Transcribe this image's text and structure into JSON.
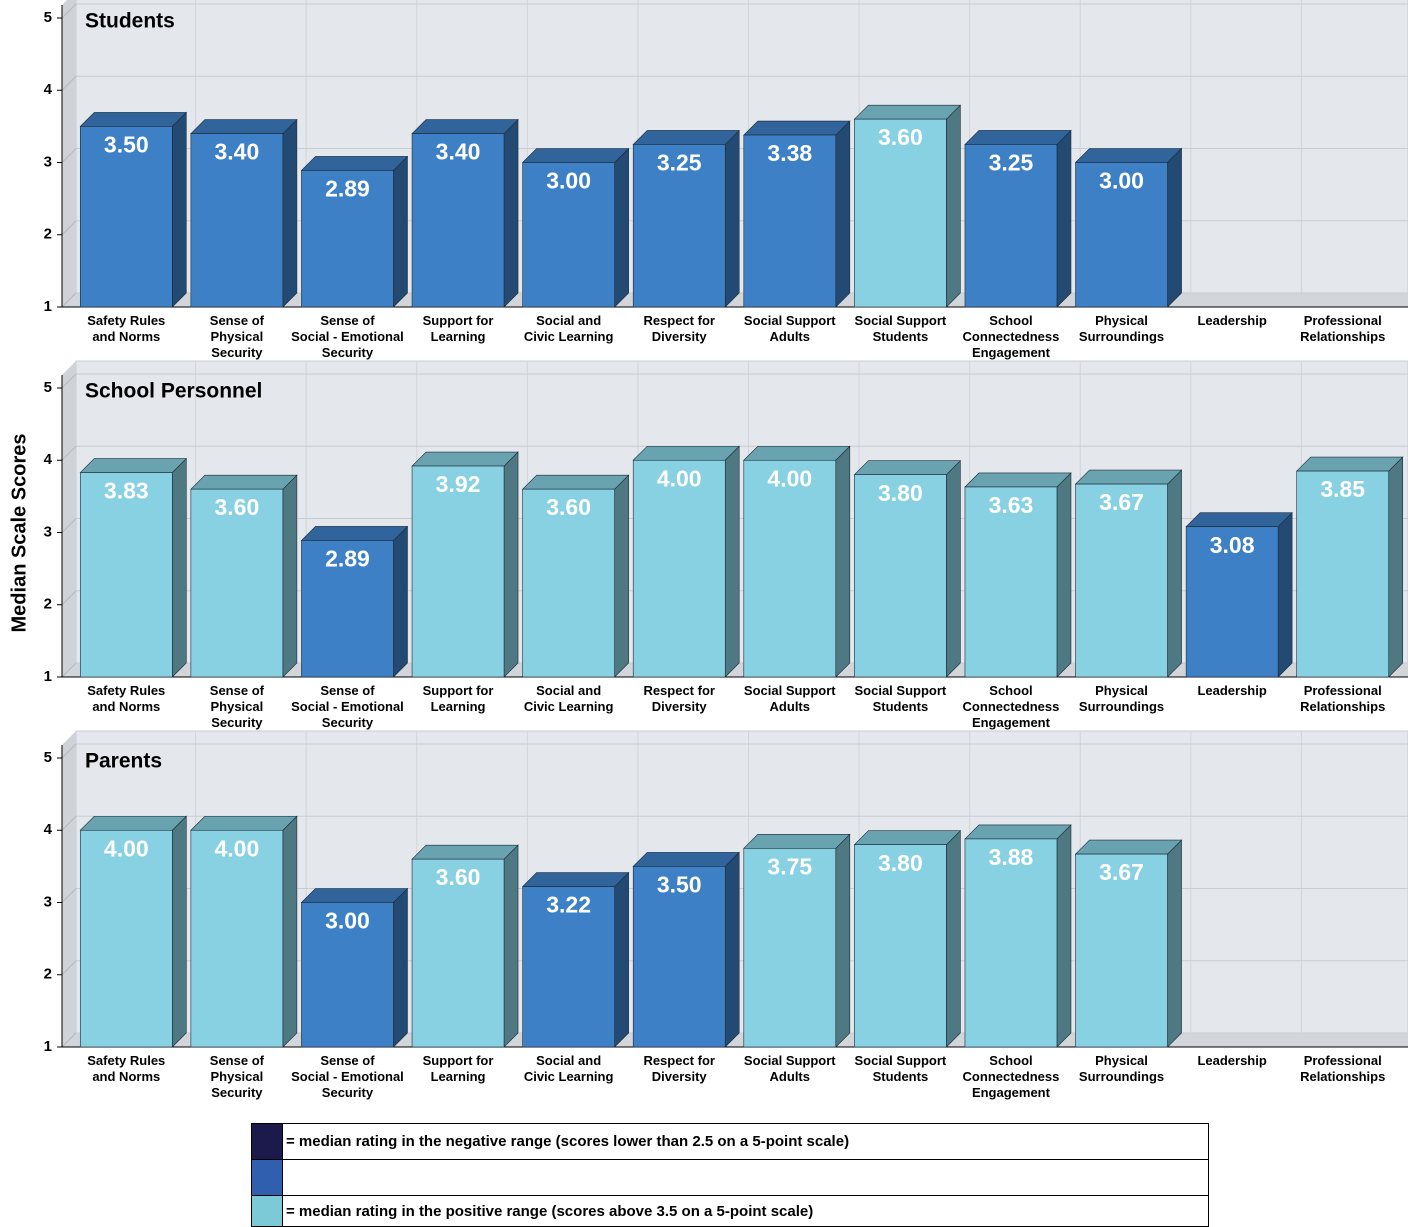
{
  "y_label": "Median Scale Scores",
  "chart_data": [
    {
      "type": "bar",
      "title": "Students",
      "categories": [
        "Safety Rules\nand Norms",
        "Sense of\nPhysical\nSecurity",
        "Sense of\nSocial - Emotional\nSecurity",
        "Support for\nLearning",
        "Social and\nCivic Learning",
        "Respect for\nDiversity",
        "Social Support\nAdults",
        "Social Support\nStudents",
        "School\nConnectedness\nEngagement",
        "Physical\nSurroundings",
        "Leadership",
        "Professional\nRelationships"
      ],
      "values": [
        3.5,
        3.4,
        2.89,
        3.4,
        3.0,
        3.25,
        3.38,
        3.6,
        3.25,
        3.0,
        null,
        null
      ],
      "value_labels": [
        "3.50",
        "3.40",
        "2.89",
        "3.40",
        "3.00",
        "3.25",
        "3.38",
        "3.60",
        "3.25",
        "3.00",
        null,
        null
      ],
      "colors": [
        "#3d80c6",
        "#3d80c6",
        "#3d80c6",
        "#3d80c6",
        "#3d80c6",
        "#3d80c6",
        "#3d80c6",
        "#87d1e2",
        "#3d80c6",
        "#3d80c6",
        null,
        null
      ],
      "ylim": [
        1,
        5
      ],
      "yticks": [
        1,
        2,
        3,
        4,
        5
      ],
      "grid": true
    },
    {
      "type": "bar",
      "title": "School Personnel",
      "categories": [
        "Safety Rules\nand Norms",
        "Sense of\nPhysical\nSecurity",
        "Sense of\nSocial - Emotional\nSecurity",
        "Support for\nLearning",
        "Social and\nCivic Learning",
        "Respect for\nDiversity",
        "Social Support\nAdults",
        "Social Support\nStudents",
        "School\nConnectedness\nEngagement",
        "Physical\nSurroundings",
        "Leadership",
        "Professional\nRelationships"
      ],
      "values": [
        3.83,
        3.6,
        2.89,
        3.92,
        3.6,
        4.0,
        4.0,
        3.8,
        3.63,
        3.67,
        3.08,
        3.85
      ],
      "value_labels": [
        "3.83",
        "3.60",
        "2.89",
        "3.92",
        "3.60",
        "4.00",
        "4.00",
        "3.80",
        "3.63",
        "3.67",
        "3.08",
        "3.85"
      ],
      "colors": [
        "#87d1e2",
        "#87d1e2",
        "#3d80c6",
        "#87d1e2",
        "#87d1e2",
        "#87d1e2",
        "#87d1e2",
        "#87d1e2",
        "#87d1e2",
        "#87d1e2",
        "#3d80c6",
        "#87d1e2"
      ],
      "ylim": [
        1,
        5
      ],
      "yticks": [
        1,
        2,
        3,
        4,
        5
      ],
      "grid": true
    },
    {
      "type": "bar",
      "title": "Parents",
      "categories": [
        "Safety Rules\nand Norms",
        "Sense of\nPhysical\nSecurity",
        "Sense of\nSocial - Emotional\nSecurity",
        "Support for\nLearning",
        "Social and\nCivic Learning",
        "Respect for\nDiversity",
        "Social Support\nAdults",
        "Social Support\nStudents",
        "School\nConnectedness\nEngagement",
        "Physical\nSurroundings",
        "Leadership",
        "Professional\nRelationships"
      ],
      "values": [
        4.0,
        4.0,
        3.0,
        3.6,
        3.22,
        3.5,
        3.75,
        3.8,
        3.88,
        3.67,
        null,
        null
      ],
      "value_labels": [
        "4.00",
        "4.00",
        "3.00",
        "3.60",
        "3.22",
        "3.50",
        "3.75",
        "3.80",
        "3.88",
        "3.67",
        null,
        null
      ],
      "colors": [
        "#87d1e2",
        "#87d1e2",
        "#3d80c6",
        "#87d1e2",
        "#3d80c6",
        "#3d80c6",
        "#87d1e2",
        "#87d1e2",
        "#87d1e2",
        "#87d1e2",
        null,
        null
      ],
      "ylim": [
        1,
        5
      ],
      "yticks": [
        1,
        2,
        3,
        4,
        5
      ],
      "grid": true
    }
  ],
  "legend": [
    {
      "color": "#1b1a4a",
      "label": "= median rating in the negative range (scores lower than 2.5 on a 5-point scale)"
    },
    {
      "color": "#2f5fae"
    },
    {
      "color": "#7ccad8",
      "label": "= median rating in the positive range (scores above 3.5 on a 5-point scale)"
    }
  ]
}
